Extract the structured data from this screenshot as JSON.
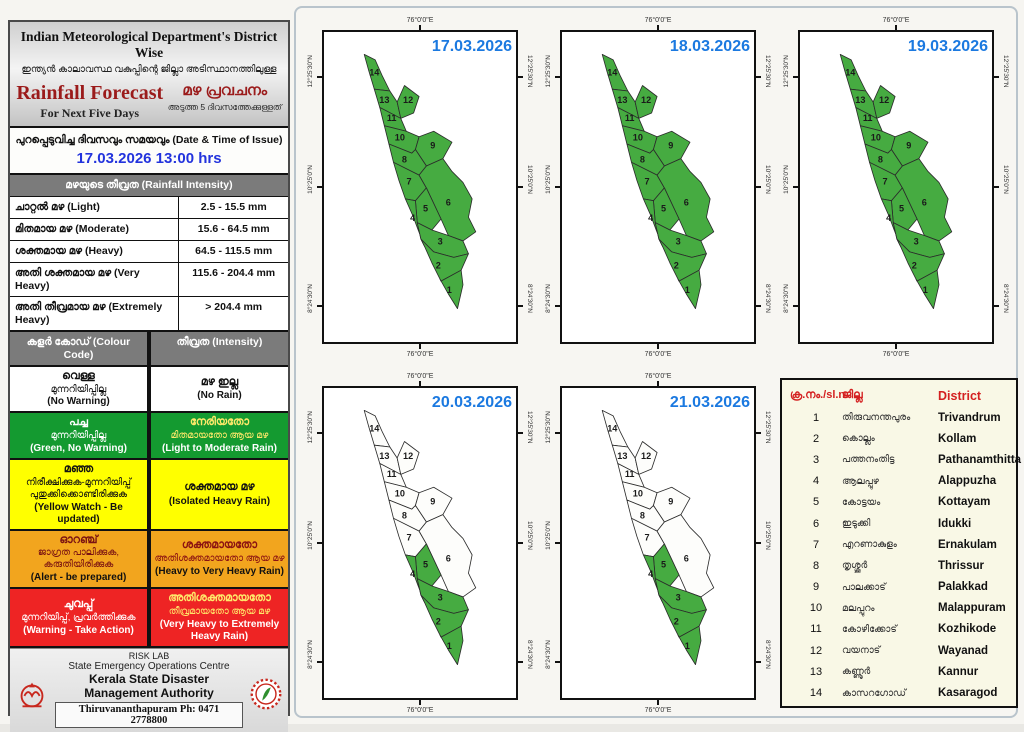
{
  "header": {
    "title_en": "Indian Meteorological Department's District Wise",
    "title_ml": "ഇന്ത്യൻ കാലാവസ്ഥ വകുപ്പിന്റെ ജില്ലാ അടിസ്ഥാനത്തിലുള്ള",
    "forecast_en": "Rainfall Forecast",
    "forecast_sub_en": "For Next Five Days",
    "forecast_ml": "മഴ പ്രവചനം",
    "forecast_sub_ml": "അടുത്ത 5 ദിവസത്തേക്കുള്ളത്",
    "issue_label": "പുറപ്പെടുവിച്ച ദിവസവും സമയവും  (Date & Time of Issue)",
    "issue_datetime": "17.03.2026 13:00 hrs"
  },
  "intensity": {
    "heading": "മഴയുടെ തീവ്രത (Rainfall Intensity)",
    "rows": [
      {
        "label": "ചാറ്റൽ മഴ (Light)",
        "range": "2.5 - 15.5 mm"
      },
      {
        "label": "മിതമായ മഴ (Moderate)",
        "range": "15.6 - 64.5 mm"
      },
      {
        "label": "ശക്തമായ മഴ (Heavy)",
        "range": "64.5 - 115.5 mm"
      },
      {
        "label": "അതി ശക്തമായ മഴ (Very Heavy)",
        "range": "115.6 - 204.4 mm"
      },
      {
        "label": "അതി തീവ്രമായ മഴ (Extremely Heavy)",
        "range": "> 204.4 mm"
      }
    ]
  },
  "color_code": {
    "left_heading": "കളർ കോഡ് (Colour Code)",
    "right_heading": "തീവ്രത (Intensity)",
    "rows": [
      {
        "left": {
          "ml": [
            "വെള്ള",
            "മുന്നറിയിപ്പില്ല"
          ],
          "en": "(No Warning)",
          "bg": "#ffffff",
          "ml_color": "#111111",
          "en_color": "#111111"
        },
        "right": {
          "ml": [
            "മഴ ഇല്ല"
          ],
          "en": "(No Rain)",
          "bg": "#ffffff",
          "ml_color": "#111111",
          "en_color": "#111111"
        }
      },
      {
        "left": {
          "ml": [
            "പച്ച",
            "മുന്നറിയിപ്പില്ല"
          ],
          "en": "(Green, No Warning)",
          "bg": "#149a30",
          "ml_color": "#ffffff",
          "en_color": "#ffffff"
        },
        "right": {
          "ml": [
            "നേരിയതോ",
            "മിതമായതോ ആയ മഴ"
          ],
          "en": "(Light to Moderate Rain)",
          "bg": "#149a30",
          "ml_color": "#ffe96a",
          "en_color": "#ffffff"
        }
      },
      {
        "left": {
          "ml": [
            "മഞ്ഞ",
            "നിരീക്ഷിക്കുക-മുന്നറിയിപ്പ്",
            "പുതുക്കിക്കൊണ്ടിരിക്കുക"
          ],
          "en": "(Yellow Watch - Be updated)",
          "bg": "#ffff00",
          "ml_color": "#111111",
          "en_color": "#111111"
        },
        "right": {
          "ml": [
            "ശക്തമായ മഴ"
          ],
          "en": "(Isolated Heavy Rain)",
          "bg": "#ffff00",
          "ml_color": "#111111",
          "en_color": "#111111"
        }
      },
      {
        "left": {
          "ml": [
            "ഓറഞ്ച്",
            "ജാഗ്രത പാലിക്കുക, കരുതിയിരിക്കുക"
          ],
          "en": "(Alert - be prepared)",
          "bg": "#f2a51e",
          "ml_color": "#7a1212",
          "en_color": "#111111"
        },
        "right": {
          "ml": [
            "ശക്തമായതോ",
            "അതിശക്തമായതോ ആയ മഴ"
          ],
          "en": "(Heavy to Very Heavy Rain)",
          "bg": "#f2a51e",
          "ml_color": "#8b1212",
          "en_color": "#111111"
        }
      },
      {
        "left": {
          "ml": [
            "ചുവപ്പ്",
            "മുന്നറിയിപ്പ്, പ്രവർത്തിക്കുക"
          ],
          "en": "(Warning - Take Action)",
          "bg": "#ee2424",
          "ml_color": "#ffffff",
          "en_color": "#ffffff"
        },
        "right": {
          "ml": [
            "അതിശക്തമായതോ",
            "തീവ്രമായതോ ആയ മഴ"
          ],
          "en": "(Very Heavy to Extremely Heavy Rain)",
          "bg": "#ee2424",
          "ml_color": "#ffe96a",
          "en_color": "#ffffff"
        }
      }
    ]
  },
  "footer": {
    "risk_lab": "RISK LAB",
    "line1": "State Emergency Operations Centre",
    "line2": "Kerala State Disaster Management Authority",
    "line3": "Thiruvananthapuram Ph: 0471 2778800"
  },
  "map_axes": {
    "top": "76°0'0\"E",
    "bottom": "76°0'0\"E",
    "lat": [
      "12°25'30\"N",
      "10°25'0\"N",
      "8°24'30\"N"
    ]
  },
  "maps": [
    {
      "date": "17.03.2026",
      "green_districts": [
        1,
        2,
        3,
        4,
        5,
        6,
        7,
        8,
        9,
        10,
        11,
        12,
        13,
        14
      ]
    },
    {
      "date": "18.03.2026",
      "green_districts": [
        1,
        2,
        3,
        4,
        5,
        6,
        7,
        8,
        9,
        10,
        11,
        12,
        13,
        14
      ]
    },
    {
      "date": "19.03.2026",
      "green_districts": [
        1,
        2,
        3,
        4,
        5,
        6,
        7,
        8,
        9,
        10,
        11,
        12,
        13,
        14
      ]
    },
    {
      "date": "20.03.2026",
      "green_districts": [
        1,
        2,
        3,
        4,
        5
      ]
    },
    {
      "date": "21.03.2026",
      "green_districts": [
        1,
        2,
        3,
        4,
        5
      ]
    }
  ],
  "district_table": {
    "headers": [
      "ക്ര.നം./sl.n.",
      "ജില്ല",
      "District"
    ],
    "rows": [
      [
        "1",
        "തിരുവനന്തപുരം",
        "Trivandrum"
      ],
      [
        "2",
        "കൊല്ലം",
        "Kollam"
      ],
      [
        "3",
        "പത്തനംതിട്ട",
        "Pathanamthitta"
      ],
      [
        "4",
        "ആലപ്പുഴ",
        "Alappuzha"
      ],
      [
        "5",
        "കോട്ടയം",
        "Kottayam"
      ],
      [
        "6",
        "ഇടുക്കി",
        "Idukki"
      ],
      [
        "7",
        "എറണാകുളം",
        "Ernakulam"
      ],
      [
        "8",
        "തൃശ്ശൂർ",
        "Thrissur"
      ],
      [
        "9",
        "പാലക്കാട്",
        "Palakkad"
      ],
      [
        "10",
        "മലപ്പുറം",
        "Malappuram"
      ],
      [
        "11",
        "കോഴിക്കോട്",
        "Kozhikode"
      ],
      [
        "12",
        "വയനാട്",
        "Wayanad"
      ],
      [
        "13",
        "കണ്ണൂർ",
        "Kannur"
      ],
      [
        "14",
        "കാസറഗോഡ്",
        "Kasaragod"
      ]
    ]
  },
  "colors": {
    "map_green": "#46ab41",
    "map_no_warning": "#fdfdfb",
    "date_blue": "#1b79e0",
    "issue_blue": "#2233dd",
    "title_red": "#9b1b1b",
    "table_header_red": "#d42020"
  }
}
